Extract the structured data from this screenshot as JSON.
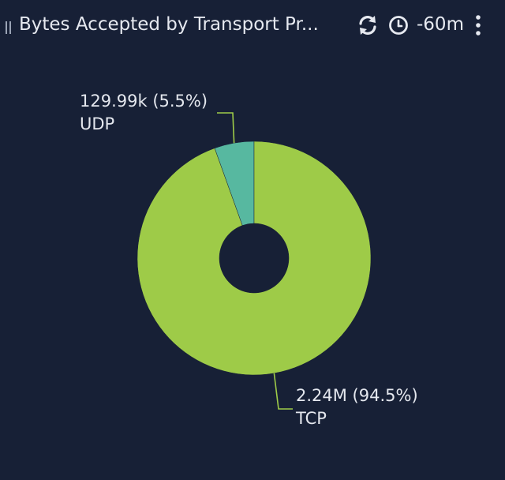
{
  "header": {
    "title": "Bytes Accepted by Transport Pr...",
    "time_range": "-60m",
    "refresh_icon": "refresh-icon",
    "clock_icon": "clock-icon",
    "menu_icon": "kebab-menu-icon",
    "drag_icon": "drag-handle-icon"
  },
  "chart_data": {
    "type": "pie",
    "title": "Bytes Accepted by Transport Pr...",
    "donut": true,
    "slices": [
      {
        "name": "UDP",
        "value": 129990,
        "value_label": "129.99k",
        "percent_label": "(5.5%)",
        "color": "#57b8a0"
      },
      {
        "name": "TCP",
        "value": 2240000,
        "value_label": "2.24M",
        "percent_label": "(94.5%)",
        "color": "#9ecb48"
      }
    ]
  },
  "colors": {
    "background": "#172036",
    "text": "#e4e7ee",
    "leader_line": "#9ecb48"
  }
}
